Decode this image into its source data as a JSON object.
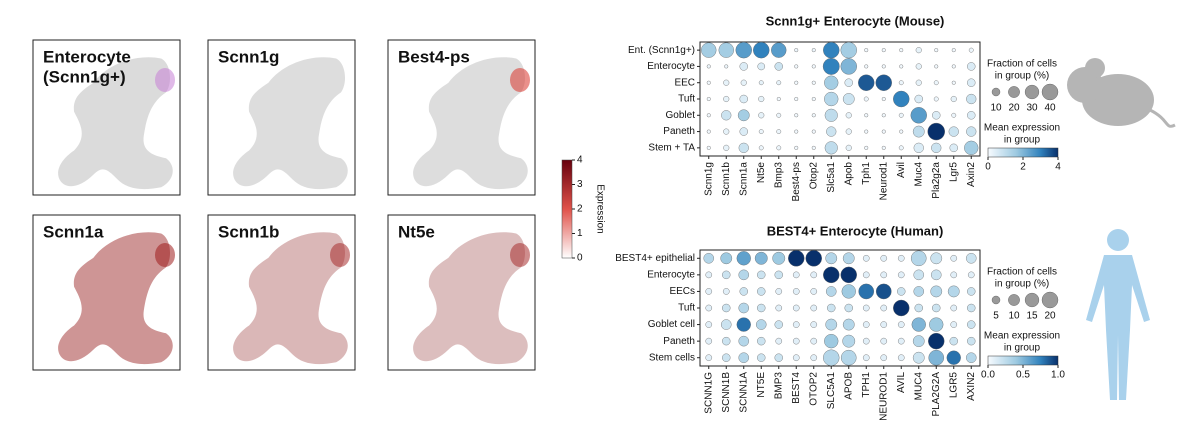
{
  "umap_panels": {
    "titles": [
      [
        "Enterocyte",
        "(Scnn1g+)"
      ],
      [
        "Scnn1g"
      ],
      [
        "Best4-ps"
      ],
      [
        "Scnn1a"
      ],
      [
        "Scnn1b"
      ],
      [
        "Nt5e"
      ]
    ],
    "colorbar": {
      "label": "Expression",
      "ticks": [
        0,
        1,
        2,
        3,
        4
      ]
    }
  },
  "dotplots": [
    {
      "title": "Scnn1g+ Enterocyte (Mouse)",
      "genes": [
        "Scnn1g",
        "Scnn1b",
        "Scnn1a",
        "Nt5e",
        "Bmp3",
        "Best4-ps",
        "Otop2",
        "Slc5a1",
        "Apob",
        "Tph1",
        "Neurod1",
        "Avil",
        "Muc4",
        "Pla2g2a",
        "Lgr5",
        "Axin2"
      ],
      "groups": [
        "Ent. (Scnn1g+)",
        "Enterocyte",
        "EEC",
        "Tuft",
        "Goblet",
        "Paneth",
        "Stem + TA"
      ],
      "fraction": [
        [
          35,
          35,
          40,
          40,
          35,
          2,
          2,
          40,
          40,
          2,
          2,
          2,
          5,
          2,
          2,
          3
        ],
        [
          2,
          2,
          10,
          8,
          10,
          2,
          2,
          42,
          40,
          2,
          2,
          2,
          5,
          2,
          2,
          10
        ],
        [
          2,
          5,
          5,
          3,
          3,
          2,
          2,
          30,
          10,
          40,
          40,
          3,
          5,
          3,
          2,
          10
        ],
        [
          2,
          5,
          10,
          5,
          2,
          2,
          2,
          30,
          20,
          3,
          2,
          40,
          10,
          3,
          5,
          15
        ],
        [
          2,
          15,
          20,
          5,
          3,
          2,
          2,
          25,
          5,
          2,
          2,
          3,
          40,
          10,
          3,
          10
        ],
        [
          2,
          5,
          10,
          3,
          3,
          2,
          2,
          15,
          5,
          2,
          2,
          2,
          20,
          45,
          15,
          15
        ],
        [
          2,
          5,
          15,
          3,
          3,
          2,
          2,
          25,
          5,
          2,
          2,
          3,
          15,
          15,
          10,
          30
        ]
      ],
      "mean": [
        [
          1.5,
          1.5,
          2.5,
          3,
          2.5,
          0.2,
          0.2,
          3,
          1.5,
          0.1,
          0.1,
          0.1,
          0.3,
          0.1,
          0.1,
          0.2
        ],
        [
          0.2,
          0.2,
          0.5,
          0.5,
          0.8,
          0.1,
          0.1,
          3,
          2,
          0.1,
          0.1,
          0.1,
          0.3,
          0.1,
          0.1,
          0.5
        ],
        [
          0.1,
          0.3,
          0.3,
          0.3,
          0.3,
          0.1,
          0.1,
          1.5,
          0.5,
          3.5,
          3.5,
          0.2,
          0.3,
          0.2,
          0.1,
          0.5
        ],
        [
          0.1,
          0.3,
          0.5,
          0.3,
          0.1,
          0.1,
          0.1,
          1.2,
          0.8,
          0.2,
          0.1,
          3,
          0.5,
          0.2,
          0.3,
          0.8
        ],
        [
          0.1,
          0.8,
          1.5,
          0.3,
          0.2,
          0.1,
          0.1,
          1,
          0.3,
          0.1,
          0.1,
          0.2,
          2.5,
          0.5,
          0.2,
          0.5
        ],
        [
          0.1,
          0.3,
          0.5,
          0.2,
          0.2,
          0.1,
          0.1,
          0.8,
          0.3,
          0.1,
          0.1,
          0.1,
          1,
          4,
          0.8,
          0.8
        ],
        [
          0.1,
          0.3,
          0.8,
          0.2,
          0.2,
          0.1,
          0.1,
          1,
          0.3,
          0.1,
          0.1,
          0.2,
          0.5,
          0.8,
          0.5,
          1.5
        ]
      ],
      "size_legend": {
        "title": [
          "Fraction of cells",
          "in group (%)"
        ],
        "ticks": [
          10,
          20,
          30,
          40
        ]
      },
      "color_legend": {
        "title": [
          "Mean expression",
          "in group"
        ],
        "ticks": [
          0,
          2,
          4
        ]
      }
    },
    {
      "title": "BEST4+ Enterocyte (Human)",
      "genes": [
        "SCNN1G",
        "SCNN1B",
        "SCNN1A",
        "NT5E",
        "BMP3",
        "BEST4",
        "OTOP2",
        "SLC5A1",
        "APOB",
        "TPH1",
        "NEUROD1",
        "AVIL",
        "MUC4",
        "PLA2G2A",
        "LGR5",
        "AXIN2"
      ],
      "groups": [
        "BEST4+ epithelial",
        "Enterocyte",
        "EECs",
        "Tuft",
        "Goblet cell",
        "Paneth",
        "Stem cells"
      ],
      "fraction": [
        [
          8,
          10,
          15,
          12,
          12,
          20,
          20,
          10,
          10,
          3,
          3,
          3,
          18,
          10,
          3,
          8
        ],
        [
          3,
          5,
          8,
          5,
          5,
          3,
          3,
          20,
          20,
          3,
          3,
          3,
          8,
          8,
          3,
          3
        ],
        [
          3,
          3,
          5,
          5,
          3,
          3,
          3,
          8,
          15,
          18,
          18,
          5,
          8,
          10,
          10,
          5
        ],
        [
          3,
          5,
          8,
          5,
          3,
          3,
          3,
          5,
          5,
          3,
          3,
          20,
          5,
          5,
          3,
          5
        ],
        [
          3,
          8,
          15,
          8,
          5,
          3,
          3,
          10,
          10,
          3,
          3,
          3,
          15,
          15,
          3,
          5
        ],
        [
          3,
          5,
          8,
          5,
          3,
          3,
          3,
          15,
          12,
          3,
          3,
          3,
          10,
          20,
          5,
          5
        ],
        [
          3,
          5,
          8,
          5,
          5,
          3,
          3,
          20,
          18,
          3,
          3,
          3,
          10,
          18,
          15,
          8
        ]
      ],
      "mean": [
        [
          0.3,
          0.4,
          0.6,
          0.5,
          0.4,
          1,
          1,
          0.3,
          0.3,
          0.1,
          0.1,
          0.1,
          0.3,
          0.2,
          0.1,
          0.2
        ],
        [
          0.1,
          0.2,
          0.3,
          0.2,
          0.2,
          0.1,
          0.1,
          1,
          1,
          0.1,
          0.1,
          0.1,
          0.2,
          0.2,
          0.1,
          0.1
        ],
        [
          0.1,
          0.1,
          0.2,
          0.2,
          0.1,
          0.1,
          0.1,
          0.3,
          0.4,
          0.8,
          0.9,
          0.2,
          0.3,
          0.3,
          0.3,
          0.2
        ],
        [
          0.1,
          0.2,
          0.3,
          0.2,
          0.1,
          0.1,
          0.1,
          0.2,
          0.2,
          0.1,
          0.1,
          1,
          0.2,
          0.2,
          0.1,
          0.2
        ],
        [
          0.1,
          0.2,
          0.8,
          0.3,
          0.2,
          0.1,
          0.1,
          0.3,
          0.3,
          0.1,
          0.1,
          0.1,
          0.5,
          0.4,
          0.1,
          0.2
        ],
        [
          0.1,
          0.2,
          0.3,
          0.2,
          0.1,
          0.1,
          0.1,
          0.4,
          0.3,
          0.1,
          0.1,
          0.1,
          0.3,
          1,
          0.2,
          0.2
        ],
        [
          0.1,
          0.2,
          0.3,
          0.2,
          0.2,
          0.1,
          0.1,
          0.3,
          0.3,
          0.1,
          0.1,
          0.1,
          0.2,
          0.5,
          0.8,
          0.3
        ]
      ],
      "size_legend": {
        "title": [
          "Fraction of cells",
          "in group (%)"
        ],
        "ticks": [
          5,
          10,
          15,
          20
        ]
      },
      "color_legend": {
        "title": [
          "Mean expression",
          "in group"
        ],
        "ticks": [
          {
            "value": 0,
            "label": "0.0"
          },
          {
            "value": 0.5,
            "label": "0.5"
          },
          {
            "value": 1,
            "label": "1.0"
          }
        ]
      }
    }
  ]
}
